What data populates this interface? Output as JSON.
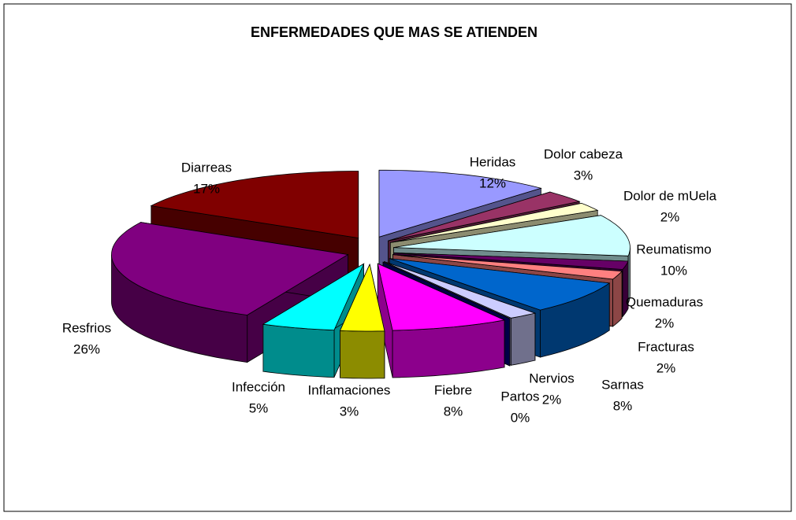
{
  "chart_data": {
    "type": "pie3d",
    "title": "ENFERMEDADES QUE MAS SE ATIENDEN",
    "categories": [
      "Heridas",
      "Dolor cabeza",
      "Dolor de mUela",
      "Reumatismo",
      "Quemaduras",
      "Fracturas",
      "Sarnas",
      "Nervios",
      "Partos",
      "Fiebre",
      "Inflamaciones",
      "Infección",
      "Resfrios",
      "Diarreas"
    ],
    "values": [
      12,
      3,
      2,
      10,
      2,
      2,
      8,
      2,
      0,
      8,
      3,
      5,
      26,
      17
    ],
    "value_labels": [
      "12%",
      "3%",
      "2%",
      "10%",
      "2%",
      "2%",
      "8%",
      "2%",
      "0%",
      "8%",
      "3%",
      "5%",
      "26%",
      "17%"
    ],
    "colors": [
      "#9999ff",
      "#993366",
      "#ffffcc",
      "#ccffff",
      "#660066",
      "#ff8080",
      "#0066cc",
      "#ccccff",
      "#000080",
      "#ff00ff",
      "#ffff00",
      "#00ffff",
      "#800080",
      "#800000"
    ]
  }
}
